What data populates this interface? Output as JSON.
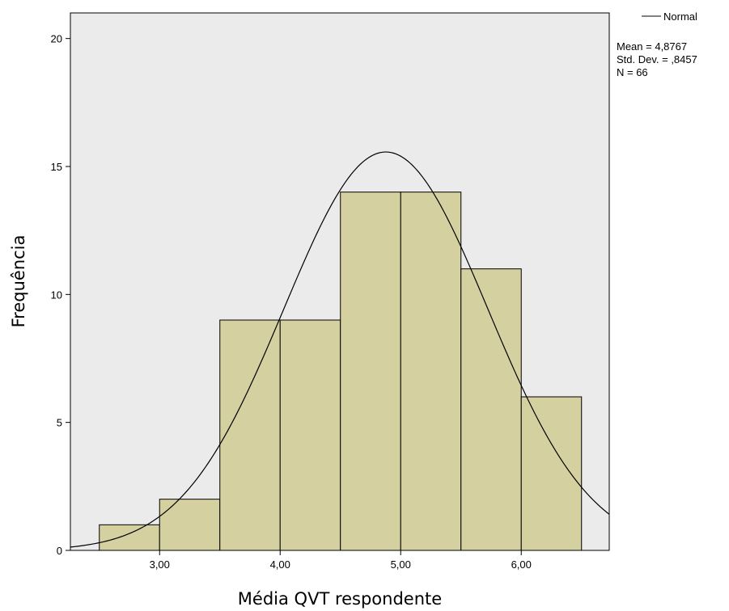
{
  "chart_data": {
    "type": "bar",
    "subtype": "histogram",
    "bins": [
      {
        "from": 2.5,
        "to": 3.0,
        "value": 1
      },
      {
        "from": 3.0,
        "to": 3.5,
        "value": 2
      },
      {
        "from": 3.5,
        "to": 4.0,
        "value": 9
      },
      {
        "from": 4.0,
        "to": 4.5,
        "value": 9
      },
      {
        "from": 4.5,
        "to": 5.0,
        "value": 14
      },
      {
        "from": 5.0,
        "to": 5.5,
        "value": 14
      },
      {
        "from": 5.5,
        "to": 6.0,
        "value": 11
      },
      {
        "from": 6.0,
        "to": 6.5,
        "value": 6
      }
    ],
    "xlabel": "Média QVT respondente",
    "ylabel": "Frequência",
    "xlim": [
      2.26,
      6.73
    ],
    "ylim": [
      0,
      21
    ],
    "x_ticks": [
      3.0,
      4.0,
      5.0,
      6.0
    ],
    "x_tick_labels": [
      "3,00",
      "4,00",
      "5,00",
      "6,00"
    ],
    "y_ticks": [
      0,
      5,
      10,
      15,
      20
    ],
    "y_tick_labels": [
      "0",
      "5",
      "10",
      "15",
      "20"
    ],
    "normal_curve": {
      "mean": 4.8767,
      "sd": 0.8457,
      "n": 66,
      "bin_width": 0.5
    },
    "legend": {
      "label": "Normal",
      "stats": [
        "Mean = 4,8767",
        "Std. Dev. = ,8457",
        "N = 66"
      ],
      "position": "top-right"
    },
    "grid": false,
    "colors": {
      "bar_fill": "#d5d0a0",
      "plot_bg": "#ebebeb",
      "curve": "#000000"
    }
  }
}
